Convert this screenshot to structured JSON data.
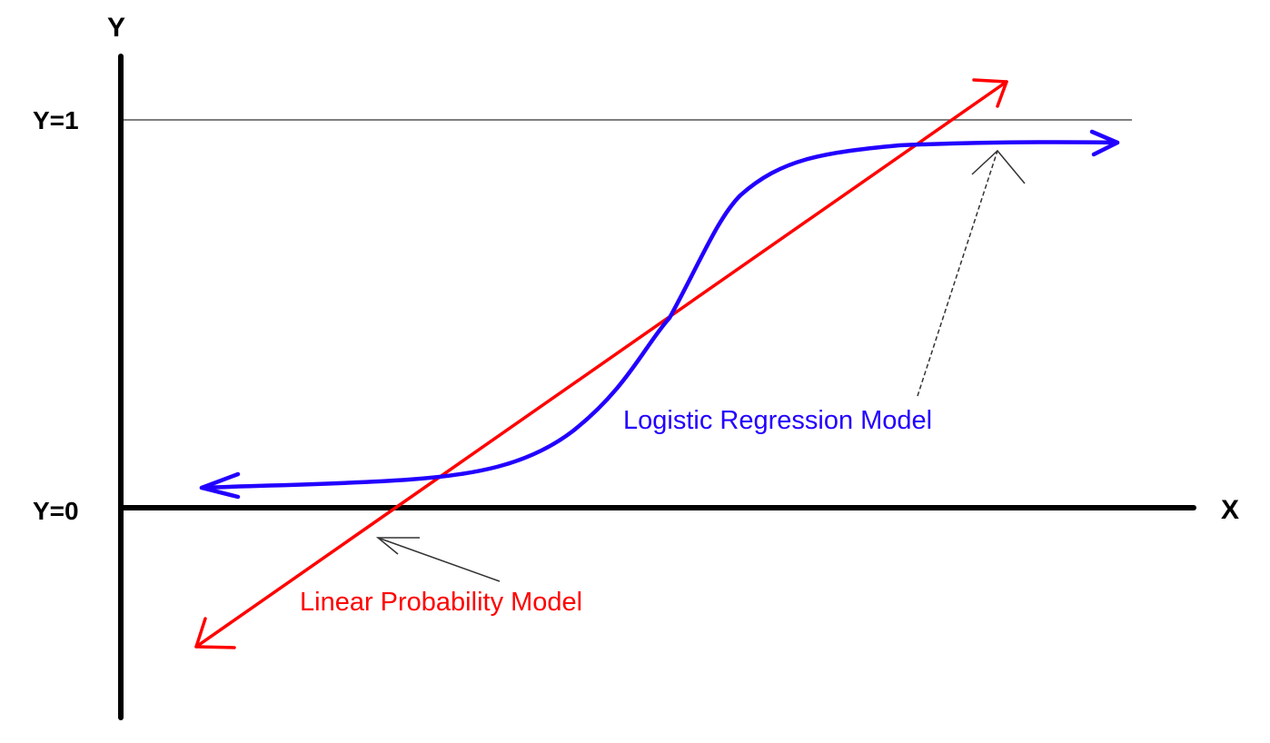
{
  "diagram": {
    "axis_labels": {
      "y": "Y",
      "x": "X"
    },
    "ticks": {
      "y_one": "Y=1",
      "y_zero": "Y=0"
    },
    "labels": {
      "logistic": "Logistic Regression Model",
      "linear": "Linear Probability Model"
    },
    "colors": {
      "axis": "#000000",
      "reference_line": "#555555",
      "logistic": "#2200ff",
      "linear": "#ff0000",
      "pointer": "#333333"
    }
  }
}
